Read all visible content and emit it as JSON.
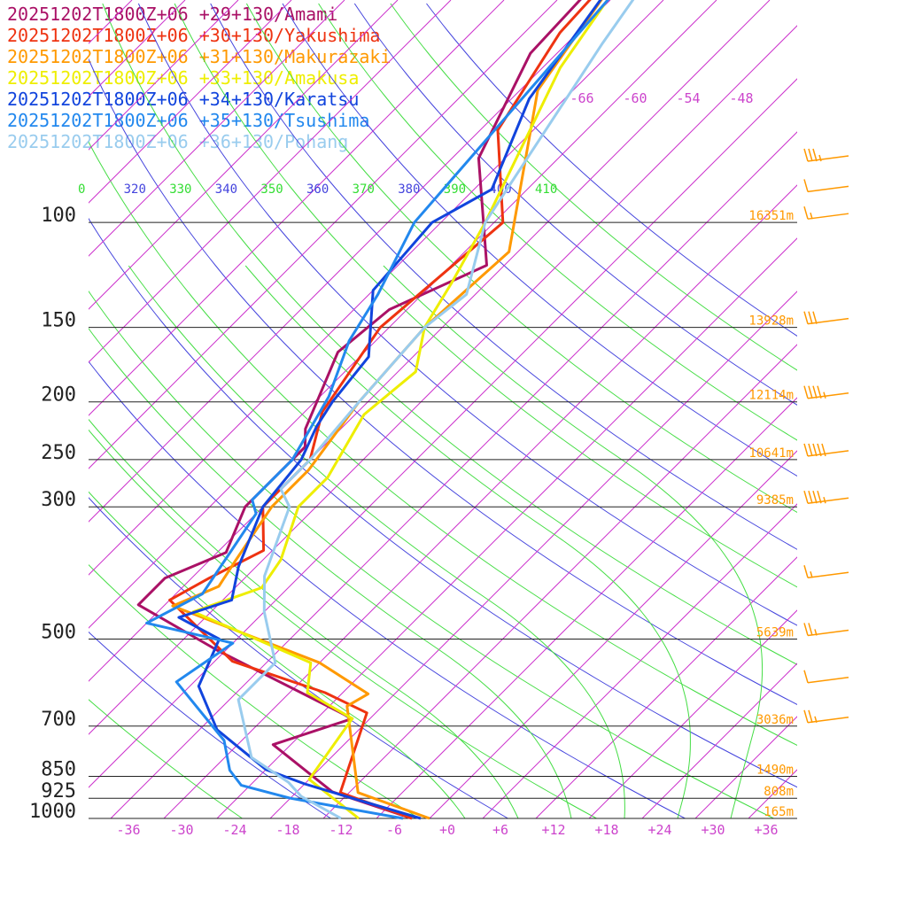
{
  "legend": [
    {
      "text": "20251202T1800Z+06 +29+130/Amami",
      "color": "#aa1166"
    },
    {
      "text": "20251202T1800Z+06 +30+130/Yakushima",
      "color": "#ee3311"
    },
    {
      "text": "20251202T1800Z+06 +31+130/Makurazaki",
      "color": "#ff9900"
    },
    {
      "text": "20251202T1800Z+06 +33+130/Amakusa",
      "color": "#eeee00"
    },
    {
      "text": "20251202T1800Z+06 +34+130/Karatsu",
      "color": "#1144dd"
    },
    {
      "text": "20251202T1800Z+06 +35+130/Tsushima",
      "color": "#2288ee"
    },
    {
      "text": "20251202T1800Z+06 +36+130/Pohang",
      "color": "#99ccee"
    }
  ],
  "chart_data": {
    "type": "line",
    "chart_kind": "skew-T log-P sounding",
    "pressure_levels": [
      {
        "label": "100",
        "p": 100
      },
      {
        "label": "150",
        "p": 150
      },
      {
        "label": "200",
        "p": 200
      },
      {
        "label": "250",
        "p": 250
      },
      {
        "label": "300",
        "p": 300
      },
      {
        "label": "500",
        "p": 500
      },
      {
        "label": "700",
        "p": 700
      },
      {
        "label": "850",
        "p": 850
      },
      {
        "label": "925",
        "p": 925
      },
      {
        "label": "1000",
        "p": 1000
      }
    ],
    "height_labels": [
      {
        "p": 100,
        "text": "16351m"
      },
      {
        "p": 150,
        "text": "13928m"
      },
      {
        "p": 200,
        "text": "12114m"
      },
      {
        "p": 250,
        "text": "10641m"
      },
      {
        "p": 300,
        "text": "9385m"
      },
      {
        "p": 500,
        "text": "5639m"
      },
      {
        "p": 700,
        "text": "3036m"
      },
      {
        "p": 850,
        "text": "1490m"
      },
      {
        "p": 925,
        "text": "808m"
      },
      {
        "p": 1000,
        "text": "165m"
      }
    ],
    "x_ticks": [
      "-36",
      "-30",
      "-24",
      "-18",
      "-12",
      "-6",
      "+0",
      "+6",
      "+12",
      "+18",
      "+24",
      "+30",
      "+36"
    ],
    "x_tick_values": [
      -36,
      -30,
      -24,
      -18,
      -12,
      -6,
      0,
      6,
      12,
      18,
      24,
      30,
      36
    ],
    "upper_t_ticks": [
      {
        "label": "-66",
        "t": -66
      },
      {
        "label": "-60",
        "t": -60
      },
      {
        "label": "-54",
        "t": -54
      },
      {
        "label": "-48",
        "t": -48
      }
    ],
    "theta_labels": [
      {
        "text": "0",
        "color": "#33dd33"
      },
      {
        "text": "320",
        "color": "#4444dd"
      },
      {
        "text": "330",
        "color": "#33dd33"
      },
      {
        "text": "340",
        "color": "#4444dd"
      },
      {
        "text": "350",
        "color": "#33dd33"
      },
      {
        "text": "360",
        "color": "#4444dd"
      },
      {
        "text": "370",
        "color": "#33dd33"
      },
      {
        "text": "380",
        "color": "#4444dd"
      },
      {
        "text": "390",
        "color": "#33dd33"
      },
      {
        "text": "400",
        "color": "#4444dd"
      },
      {
        "text": "410",
        "color": "#33dd33"
      }
    ],
    "series": [
      {
        "name": "20251202T1800Z+06 +29+130/Amami",
        "color": "#aa1166",
        "points": [
          [
            -80,
            12
          ],
          [
            -77,
            52
          ],
          [
            -71,
            78
          ],
          [
            -58,
            118
          ],
          [
            -64,
            140
          ],
          [
            -65,
            165
          ],
          [
            -60,
            222
          ],
          [
            -58,
            238
          ],
          [
            -58,
            300
          ],
          [
            -55,
            358
          ],
          [
            -59,
            395
          ],
          [
            -59,
            438
          ],
          [
            -45,
            522
          ],
          [
            -22,
            680
          ],
          [
            -28,
            752
          ],
          [
            -16,
            902
          ],
          [
            -4,
            1000
          ]
        ]
      },
      {
        "name": "20251202T1800Z+06 +30+130/Yakushima",
        "color": "#ee3311",
        "points": [
          [
            -80,
            10
          ],
          [
            -76,
            48
          ],
          [
            -72,
            70
          ],
          [
            -61,
            100
          ],
          [
            -63,
            150
          ],
          [
            -60,
            208
          ],
          [
            -56,
            250
          ],
          [
            -56,
            300
          ],
          [
            -51,
            355
          ],
          [
            -54,
            395
          ],
          [
            -56,
            430
          ],
          [
            -42,
            545
          ],
          [
            -28,
            615
          ],
          [
            -21,
            665
          ],
          [
            -15,
            905
          ],
          [
            -4,
            1000
          ]
        ]
      },
      {
        "name": "20251202T1800Z+06 +31+130/Makurazaki",
        "color": "#ff9900",
        "points": [
          [
            -80,
            8
          ],
          [
            -78,
            30
          ],
          [
            -72,
            60
          ],
          [
            -57,
            112
          ],
          [
            -58,
            150
          ],
          [
            -57,
            200
          ],
          [
            -55,
            260
          ],
          [
            -55,
            300
          ],
          [
            -53,
            370
          ],
          [
            -52,
            408
          ],
          [
            -55,
            440
          ],
          [
            -32,
            548
          ],
          [
            -23,
            618
          ],
          [
            -24,
            648
          ],
          [
            -13,
            905
          ],
          [
            -2,
            1000
          ]
        ]
      },
      {
        "name": "20251202T1800Z+06 +33+130/Amakusa",
        "color": "#eeee00",
        "points": [
          [
            -78,
            28
          ],
          [
            -72,
            55
          ],
          [
            -63,
            100
          ],
          [
            -60,
            126
          ],
          [
            -58,
            150
          ],
          [
            -54,
            178
          ],
          [
            -55,
            210
          ],
          [
            -52,
            268
          ],
          [
            -52,
            300
          ],
          [
            -48,
            368
          ],
          [
            -47,
            410
          ],
          [
            -52,
            450
          ],
          [
            -33,
            548
          ],
          [
            -30,
            615
          ],
          [
            -22,
            680
          ],
          [
            -20,
            860
          ],
          [
            -10,
            1000
          ]
        ]
      },
      {
        "name": "20251202T1800Z+06 +34+130/Karatsu",
        "color": "#1144dd",
        "points": [
          [
            -79,
            12
          ],
          [
            -76,
            38
          ],
          [
            -72,
            62
          ],
          [
            -66,
            88
          ],
          [
            -69,
            100
          ],
          [
            -68,
            130
          ],
          [
            -61,
            168
          ],
          [
            -60,
            200
          ],
          [
            -59,
            220
          ],
          [
            -57,
            250
          ],
          [
            -56,
            300
          ],
          [
            -52,
            378
          ],
          [
            -49,
            430
          ],
          [
            -53,
            460
          ],
          [
            -46,
            500
          ],
          [
            -43,
            600
          ],
          [
            -36,
            710
          ],
          [
            -26,
            828
          ],
          [
            -20,
            875
          ],
          [
            -13,
            925
          ],
          [
            -3,
            1000
          ]
        ]
      },
      {
        "name": "20251202T1800Z+06 +35+130/Tsushima",
        "color": "#2288ee",
        "points": [
          [
            -78,
            16
          ],
          [
            -71,
            100
          ],
          [
            -67,
            132
          ],
          [
            -65,
            158
          ],
          [
            -61,
            196
          ],
          [
            -58,
            250
          ],
          [
            -58,
            292
          ],
          [
            -56,
            308
          ],
          [
            -53,
            420
          ],
          [
            -56,
            470
          ],
          [
            -44,
            508
          ],
          [
            -46,
            590
          ],
          [
            -34,
            740
          ],
          [
            -30,
            830
          ],
          [
            -27,
            880
          ],
          [
            -20,
            925
          ],
          [
            -5,
            1000
          ]
        ]
      },
      {
        "name": "20251202T1800Z+06 +36+130/Pohang",
        "color": "#99ccee",
        "points": [
          [
            -78,
            20
          ],
          [
            -70,
            50
          ],
          [
            -63,
            100
          ],
          [
            -57,
            132
          ],
          [
            -58,
            150
          ],
          [
            -57,
            200
          ],
          [
            -56,
            250
          ],
          [
            -56,
            280
          ],
          [
            -53,
            300
          ],
          [
            -48,
            392
          ],
          [
            -44,
            450
          ],
          [
            -37,
            548
          ],
          [
            -37,
            632
          ],
          [
            -29,
            790
          ],
          [
            -22,
            870
          ],
          [
            -19,
            918
          ],
          [
            -12,
            1000
          ]
        ]
      }
    ],
    "wind_barbs": [
      {
        "p": 80,
        "kt": 35
      },
      {
        "p": 90,
        "kt": 10
      },
      {
        "p": 100,
        "kt": 15
      },
      {
        "p": 150,
        "kt": 30
      },
      {
        "p": 200,
        "kt": 45
      },
      {
        "p": 250,
        "kt": 50
      },
      {
        "p": 300,
        "kt": 45
      },
      {
        "p": 400,
        "kt": 15
      },
      {
        "p": 500,
        "kt": 25
      },
      {
        "p": 600,
        "kt": 10
      },
      {
        "p": 700,
        "kt": 25
      }
    ]
  }
}
